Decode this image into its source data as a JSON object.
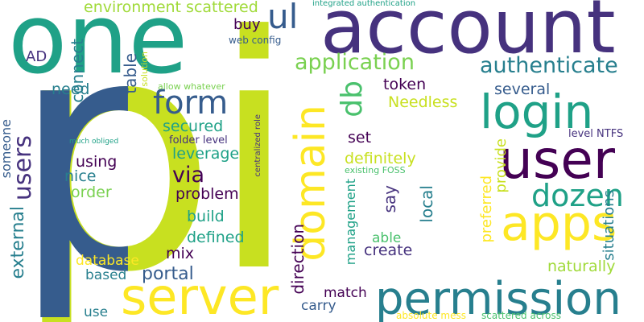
{
  "words": {
    "pi": "pi",
    "one": "one",
    "account": "account",
    "server": "server",
    "permission": "permission",
    "apps": "apps",
    "user": "user",
    "login": "login",
    "domain": "domain",
    "form": "form",
    "users": "users",
    "external": "external",
    "dozen": "dozen",
    "authenticate": "authenticate",
    "application": "application",
    "ul": "ul",
    "db": "db",
    "environment_scattered": "environment scattered",
    "integrated_authentication": "integrated authentication",
    "connect": "connect",
    "table": "table",
    "need": "need",
    "ad": "AD",
    "buy": "buy",
    "web_config": "web config",
    "sso_solution": "SSO solution",
    "allow_whatever": "allow whatever",
    "token": "token",
    "needless": "Needless",
    "several": "several",
    "secured": "secured",
    "level_ntfs": "level NTFS",
    "folder_level": "folder level",
    "leverage": "leverage",
    "using": "using",
    "nice": "nice",
    "order": "order",
    "via": "via",
    "problem": "problem",
    "build": "build",
    "defined": "defined",
    "mix": "mix",
    "database": "database",
    "based": "based",
    "portal": "portal",
    "someone": "someone",
    "much_obliged": "much obliged",
    "centralized_role": "centralized role",
    "direction": "direction",
    "set": "set",
    "definitely": "definitely",
    "existing_foss": "existing FOSS",
    "say": "say",
    "management": "management",
    "local": "local",
    "able": "able",
    "create": "create",
    "preferred": "preferred",
    "provide": "provide",
    "situations": "situations",
    "naturally": "naturally",
    "match": "match",
    "carry": "carry",
    "use": "use",
    "absolute_mess": "absolute mess",
    "scattered_across": "scattered across"
  },
  "colors": {
    "lime": "#c8e020",
    "yellow_green": "#a0da39",
    "green": "#4ac16d",
    "teal_green": "#1fa187",
    "teal": "#277f8e",
    "blue": "#365c8d",
    "indigo": "#46327e",
    "purple": "#440154",
    "light_green": "#7ad151",
    "yellow": "#fde725"
  }
}
